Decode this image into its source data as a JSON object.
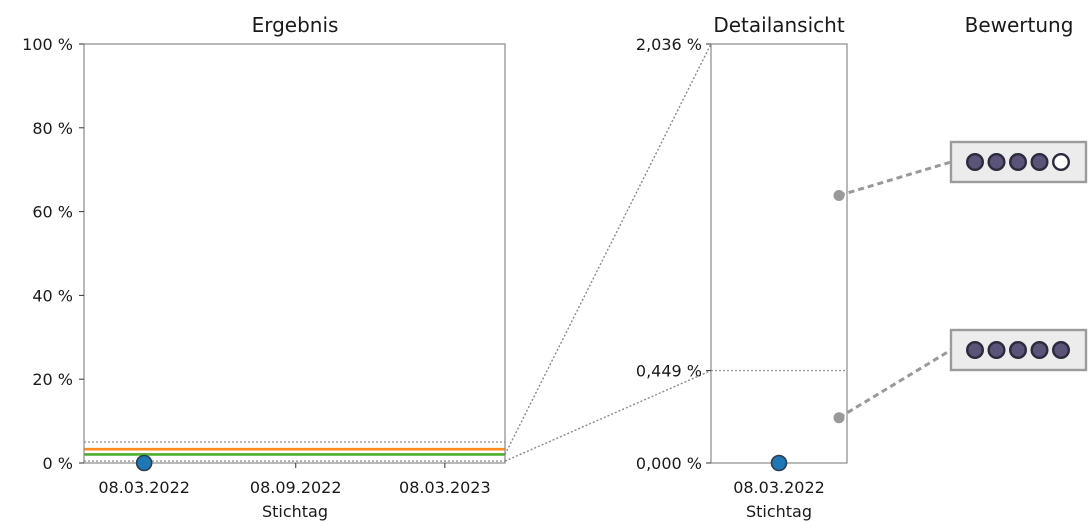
{
  "chart_data": [
    {
      "id": "main",
      "type": "scatter",
      "title": "Ergebnis",
      "xlabel": "Stichtag",
      "ylabel": "",
      "y_unit": "%",
      "ylim": [
        0,
        100
      ],
      "yticks": [
        0,
        20,
        40,
        60,
        80,
        100
      ],
      "ytick_labels": [
        "0 %",
        "20 %",
        "40 %",
        "60 %",
        "80 %",
        "100 %"
      ],
      "xlim": [
        "2021-12-25",
        "2023-05-20"
      ],
      "xticks": [
        "2022-03-08",
        "2022-09-08",
        "2023-03-08"
      ],
      "xtick_labels": [
        "08.03.2022",
        "08.09.2022",
        "08.03.2023"
      ],
      "points": [
        {
          "x": "2022-03-08",
          "y": 0.0
        }
      ],
      "reference_lines": [
        {
          "y": 0.449,
          "style": "dotted",
          "color": "#999999"
        },
        {
          "y": 2.036,
          "style": "solid",
          "color": "#4daf2e"
        },
        {
          "y": 3.3,
          "style": "solid",
          "color": "#ff8a1d"
        },
        {
          "y": 5.0,
          "style": "dotted",
          "color": "#999999"
        }
      ],
      "grid": false
    },
    {
      "id": "detail",
      "type": "scatter",
      "title": "Detailansicht",
      "xlabel": "Stichtag",
      "ylim": [
        0,
        2.036
      ],
      "yticks": [
        0,
        0.449,
        2.036
      ],
      "ytick_labels": [
        "0,000 %",
        "0,449 %",
        "2,036 %"
      ],
      "xtick_labels": [
        "08.03.2022"
      ],
      "points": [
        {
          "x": "2022-03-08",
          "y": 0.0
        }
      ],
      "reference_lines": [
        {
          "y": 0.449,
          "style": "dotted",
          "color": "#999999"
        }
      ],
      "grid": false
    }
  ],
  "rating": {
    "title": "Bewertung",
    "entries": [
      {
        "anchor_y": 1.3,
        "filled": 4,
        "total": 5
      },
      {
        "anchor_y": 0.22,
        "filled": 5,
        "total": 5
      }
    ],
    "colors": {
      "filled": "#5b5478",
      "empty": "#ffffff",
      "stroke": "#2c2a3d",
      "box": "#ececec",
      "box_border": "#9b9b9b"
    }
  },
  "colors": {
    "point": "#1f77b4",
    "point_edge": "#2c3e50",
    "axis": "#8a8a8a",
    "connector": "#8a8a8a"
  }
}
